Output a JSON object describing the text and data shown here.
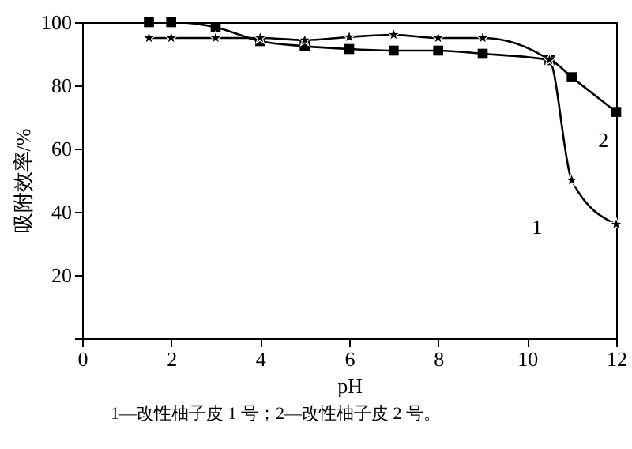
{
  "chart_data": {
    "type": "line",
    "xlabel": "pH",
    "ylabel": "吸附效率/%",
    "xlim": [
      0,
      12
    ],
    "xticks": [
      0,
      2,
      4,
      6,
      8,
      10,
      12
    ],
    "ylim": [
      0,
      100
    ],
    "yticks": [
      {
        "value": 0,
        "label": null
      },
      20,
      40,
      60,
      80,
      100
    ],
    "grid": false,
    "legend": false,
    "series": [
      {
        "name": "1",
        "color": "#000000",
        "marker": "star",
        "x": [
          1.5,
          2,
          3,
          4,
          5,
          6,
          7,
          8,
          9,
          10.5,
          11,
          12
        ],
        "values": [
          95,
          95,
          95,
          95,
          94.3,
          95.3,
          96,
          95,
          95,
          88,
          50,
          36
        ]
      },
      {
        "name": "2",
        "color": "#000000",
        "marker": "square",
        "x": [
          1.5,
          2,
          3,
          4,
          5,
          6,
          7,
          8,
          9,
          10.5,
          11,
          12
        ],
        "values": [
          100,
          100,
          98.4,
          94,
          92.4,
          91.5,
          91,
          91,
          90,
          88,
          82.6,
          71.6
        ]
      }
    ],
    "annotations": [
      "1—改性柚子皮 1 号；2—改性柚子皮 2 号。"
    ]
  }
}
